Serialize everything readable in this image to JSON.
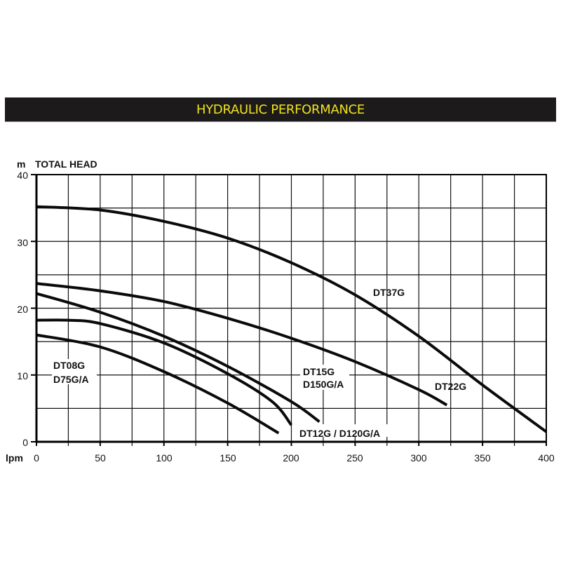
{
  "header": {
    "title": "HYDRAULIC PERFORMANCE",
    "background": "#1c1a1b",
    "text_color": "#f2e21c"
  },
  "axes": {
    "y_unit": "m",
    "y_title": "TOTAL HEAD",
    "x_unit": "lpm",
    "y_ticks": [
      "0",
      "10",
      "20",
      "30",
      "40"
    ],
    "x_ticks": [
      "0",
      "50",
      "100",
      "150",
      "200",
      "250",
      "300",
      "350",
      "400"
    ]
  },
  "labels": {
    "dt37g": "DT37G",
    "dt22g": "DT22G",
    "dt15g_1": "DT15G",
    "dt15g_2": "D150G/A",
    "dt12g": "DT12G / D120G/A",
    "dt08g_1": "DT08G",
    "dt08g_2": "D75G/A"
  },
  "chart_data": {
    "type": "line",
    "title": "HYDRAULIC PERFORMANCE",
    "xlabel": "lpm",
    "ylabel": "m TOTAL HEAD",
    "xlim": [
      0,
      400
    ],
    "ylim": [
      0,
      40
    ],
    "x_ticks": [
      0,
      50,
      100,
      150,
      200,
      250,
      300,
      350,
      400
    ],
    "y_ticks": [
      0,
      10,
      20,
      30,
      40
    ],
    "grid": {
      "x_step": 25,
      "y_step": 5,
      "on": true
    },
    "legend": "inline labels",
    "series": [
      {
        "name": "DT37G",
        "x": [
          0,
          50,
          100,
          150,
          200,
          250,
          300,
          350,
          400
        ],
        "y": [
          35.2,
          34.7,
          33.0,
          30.5,
          26.8,
          22.0,
          15.8,
          8.5,
          1.5
        ]
      },
      {
        "name": "DT22G",
        "x": [
          0,
          50,
          100,
          150,
          200,
          250,
          300,
          322
        ],
        "y": [
          23.7,
          22.6,
          21.0,
          18.5,
          15.5,
          12.0,
          7.8,
          5.5
        ]
      },
      {
        "name": "DT15G / D150G/A",
        "x": [
          0,
          50,
          100,
          150,
          200,
          222
        ],
        "y": [
          22.2,
          19.4,
          15.8,
          11.3,
          6.0,
          3.0
        ]
      },
      {
        "name": "DT12G / D120G/A",
        "x": [
          0,
          25,
          50,
          100,
          150,
          185,
          200
        ],
        "y": [
          18.2,
          18.2,
          17.7,
          14.8,
          10.2,
          6.0,
          2.5
        ]
      },
      {
        "name": "DT08G / D75G/A",
        "x": [
          0,
          50,
          100,
          150,
          190
        ],
        "y": [
          16.0,
          14.2,
          10.5,
          5.8,
          1.3
        ]
      }
    ]
  }
}
